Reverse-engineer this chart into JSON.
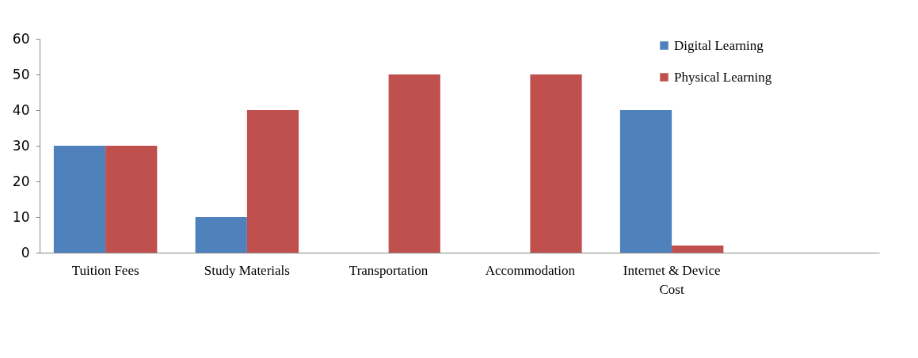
{
  "chart_data": {
    "type": "bar",
    "categories": [
      "Tuition Fees",
      "Study Materials",
      "Transportation",
      "Accommodation",
      "Internet & Device Cost",
      null
    ],
    "series": [
      {
        "name": "Digital Learning",
        "color": "#4f81bd",
        "values": [
          30,
          10,
          0,
          0,
          40,
          null
        ]
      },
      {
        "name": "Physical Learning",
        "color": "#c0504d",
        "values": [
          30,
          40,
          50,
          50,
          2,
          null
        ]
      }
    ],
    "ylim": [
      0,
      60
    ],
    "yticks": [
      0,
      10,
      20,
      30,
      40,
      50,
      60
    ],
    "grid": false,
    "legend": "top right"
  }
}
